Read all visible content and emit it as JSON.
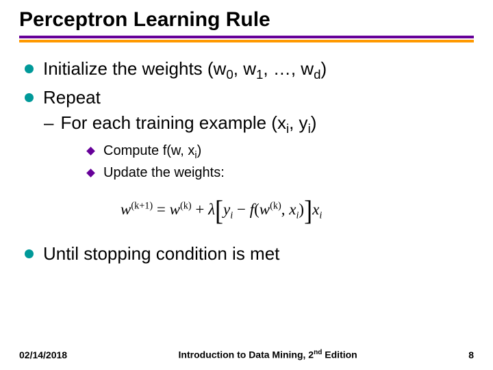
{
  "title": "Perceptron Learning Rule",
  "colors": {
    "underline_top": "#660099",
    "underline_bottom": "#ff9900",
    "bullet": "#009999",
    "diamond": "#660099",
    "background": "#ffffff",
    "text": "#000000"
  },
  "bullets": {
    "b1_prefix": "Initialize the weights (w",
    "b1_idx0": "0",
    "b1_mid1": ", w",
    "b1_idx1": "1",
    "b1_mid2": ", …, w",
    "b1_idxd": "d",
    "b1_suffix": ")",
    "b2": "Repeat",
    "sub1_prefix": "For each training example (x",
    "sub1_idxi1": "i",
    "sub1_mid": ", y",
    "sub1_idxi2": "i",
    "sub1_suffix": ")",
    "d1_prefix": "Compute f(w, x",
    "d1_idx": "i",
    "d1_suffix": ")",
    "d2": "Update the weights:",
    "b3": "Until stopping condition is met"
  },
  "formula": {
    "w": "w",
    "k1": "(k+1)",
    "eq": " = ",
    "k": "(k)",
    "plus": " + ",
    "lambda": "λ",
    "y": "y",
    "i": "i",
    "minus": " − ",
    "f": "f",
    "lp": "(",
    "comma": ", ",
    "x": "x",
    "rp": ")"
  },
  "footer": {
    "date": "02/14/2018",
    "center_pre": "Introduction to Data Mining, 2",
    "center_nd": "nd",
    "center_post": " Edition",
    "page": "8"
  }
}
